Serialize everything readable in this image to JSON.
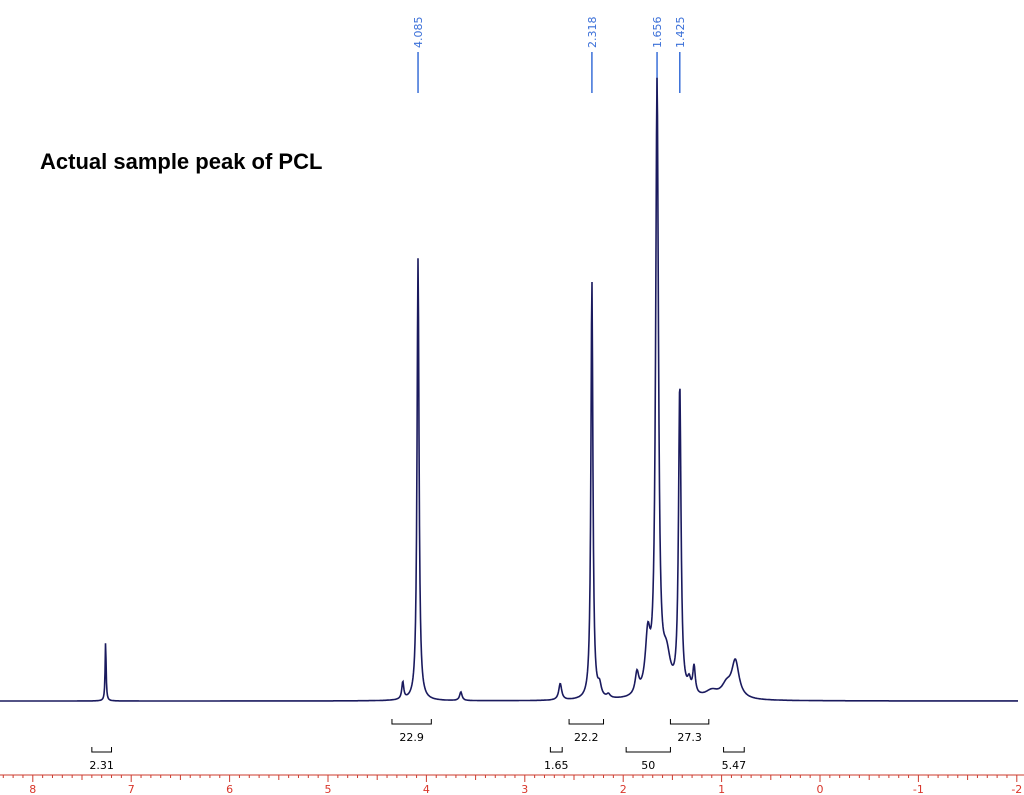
{
  "chart_data": {
    "type": "line",
    "title": "",
    "annotation": "Actual sample peak of PCL",
    "xlabel": "",
    "ylabel": "",
    "x_axis": {
      "min": -2,
      "max": 8.36,
      "reversed": true,
      "tick_labels": [
        "8",
        "7",
        "6",
        "5",
        "4",
        "3",
        "2",
        "1",
        "0",
        "-1",
        "-2"
      ],
      "tick_values": [
        8,
        7,
        6,
        5,
        4,
        3,
        2,
        1,
        0,
        -1,
        -2
      ]
    },
    "y_range": [
      0,
      1
    ],
    "grid": false,
    "peaks": [
      {
        "ppm": 7.26,
        "height": 0.098
      },
      {
        "ppm": 4.085,
        "height": 0.725
      },
      {
        "ppm": 2.318,
        "height": 0.687
      },
      {
        "ppm": 1.656,
        "height": 1.0
      },
      {
        "ppm": 1.425,
        "height": 0.506
      }
    ],
    "peak_labels": [
      {
        "label": "4.085",
        "ppm": 4.085
      },
      {
        "label": "2.318",
        "ppm": 2.318
      },
      {
        "label": "1.656",
        "ppm": 1.656
      },
      {
        "label": "1.425",
        "ppm": 1.425
      }
    ],
    "integrals": [
      {
        "label": "2.31",
        "from": 7.4,
        "to": 7.2,
        "row": 2
      },
      {
        "label": "22.9",
        "from": 4.35,
        "to": 3.95,
        "row": 1
      },
      {
        "label": "1.65",
        "from": 2.74,
        "to": 2.62,
        "row": 2
      },
      {
        "label": "22.2",
        "from": 2.55,
        "to": 2.2,
        "row": 1
      },
      {
        "label": "50",
        "from": 1.97,
        "to": 1.52,
        "row": 2
      },
      {
        "label": "27.3",
        "from": 1.52,
        "to": 1.13,
        "row": 1
      },
      {
        "label": "5.47",
        "from": 0.98,
        "to": 0.77,
        "row": 2
      }
    ],
    "colors": {
      "spectrum": "#1a1a5e",
      "peak_label": "#3a6fd8",
      "axis_tick_label": "#d9362b",
      "axis_line": "#cc3b2e",
      "integral": "#000000",
      "annotation": "#000000"
    }
  }
}
